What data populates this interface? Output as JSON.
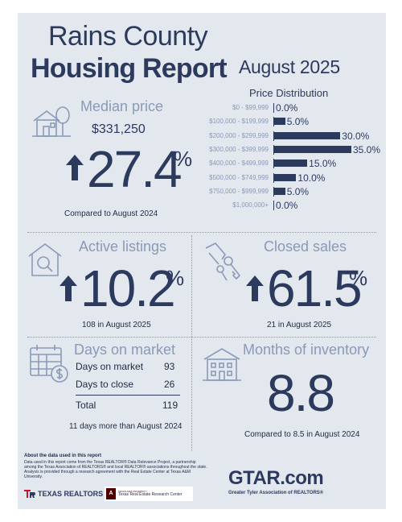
{
  "header": {
    "title_line1": "Rains County",
    "title_line2": "Housing Report",
    "report_date": "August 2025"
  },
  "median_price": {
    "label": "Median price",
    "value": "$331,250",
    "change": "27.4",
    "percent_sign": "%",
    "direction": "up",
    "note": "Compared to August 2024",
    "icon": "house-tree-icon"
  },
  "price_distribution": {
    "title": "Price Distribution",
    "chart_data": {
      "type": "bar",
      "orientation": "horizontal",
      "categories": [
        "$0 - $99,999",
        "$100,000 - $199,999",
        "$200,000 - $299,999",
        "$300,000 - $399,999",
        "$400,000 - $499,999",
        "$500,000 - $749,999",
        "$750,000 - $999,999",
        "$1,000,000+"
      ],
      "values": [
        0.0,
        5.0,
        30.0,
        35.0,
        15.0,
        10.0,
        5.0,
        0.0
      ],
      "value_labels": [
        "0.0%",
        "5.0%",
        "30.0%",
        "35.0%",
        "15.0%",
        "10.0%",
        "5.0%",
        "0.0%"
      ],
      "title": "Price Distribution",
      "xlim": [
        0,
        35
      ]
    },
    "bar_color": "#2c3a5e"
  },
  "active_listings": {
    "label": "Active listings",
    "change": "10.2",
    "percent_sign": "%",
    "direction": "up",
    "note": "108 in August 2025",
    "icon": "house-magnifier-icon"
  },
  "closed_sales": {
    "label": "Closed sales",
    "change": "61.5",
    "percent_sign": "%",
    "direction": "up",
    "note": "21 in August 2025",
    "icon": "hand-keys-icon"
  },
  "days_on_market": {
    "label": "Days on market",
    "rows": [
      {
        "label": "Days on market",
        "value": "93"
      },
      {
        "label": "Days to close",
        "value": "26"
      }
    ],
    "total_label": "Total",
    "total_value": "119",
    "note": "11 days more than August 2024",
    "icon": "calendar-dollar-icon"
  },
  "months_inventory": {
    "label": "Months of inventory",
    "value": "8.8",
    "note": "Compared to 8.5 in August 2024",
    "icon": "building-icon"
  },
  "footer": {
    "about_title": "About the data used in this report",
    "about_text": "Data used in this report come from the Texas REALTOR® Data Relevance Project, a partnership among the Texas Association of REALTORS® and local REALTOR® associations throughout the state. Analysis is provided through a research agreement with the Real Estate Center at Texas A&M University.",
    "texas_realtors_logo": "TEXAS REALTORS",
    "tamu_small": "TEXAS A&M UNIVERSITY",
    "tamu_logo": "Texas Real Estate Research Center",
    "gtar_logo": "GTAR.com",
    "gtar_tagline": "Greater Tyler Association of REALTORS®"
  },
  "colors": {
    "navy": "#2c3a5e",
    "slate": "#8a9ab8",
    "background": "#e3e7ee",
    "accent_red": "#c8102e"
  }
}
